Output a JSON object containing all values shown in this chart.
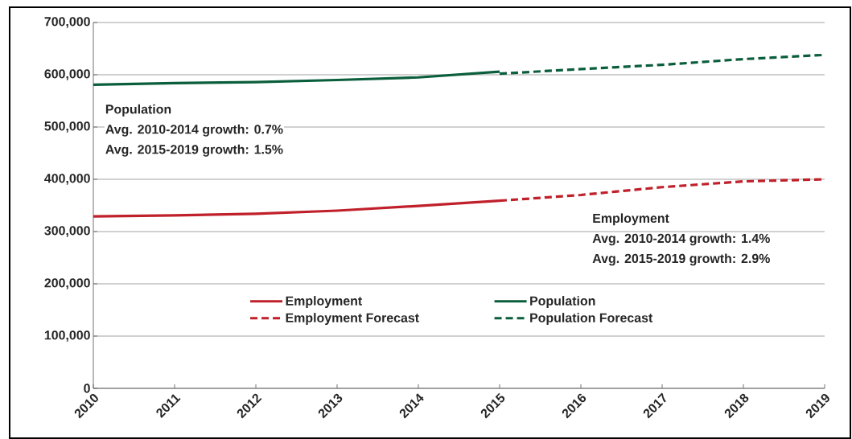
{
  "chart_data": {
    "type": "line",
    "series": [
      {
        "name": "Employment",
        "color": "#c0202a",
        "line_style": "solid",
        "x": [
          2010,
          2011,
          2012,
          2013,
          2014,
          2015
        ],
        "values": [
          329000,
          331000,
          334000,
          340000,
          349000,
          359000
        ]
      },
      {
        "name": "Population",
        "color": "#0b5e3c",
        "line_style": "solid",
        "x": [
          2010,
          2011,
          2012,
          2013,
          2014,
          2015
        ],
        "values": [
          581000,
          584000,
          586000,
          590000,
          595000,
          606000
        ]
      },
      {
        "name": "Employment Forecast",
        "color": "#c0202a",
        "line_style": "dashed",
        "x": [
          2015,
          2016,
          2017,
          2018,
          2019
        ],
        "values": [
          359000,
          370000,
          385000,
          396000,
          400000
        ]
      },
      {
        "name": "Population Forecast",
        "color": "#0b5e3c",
        "line_style": "dashed",
        "x": [
          2015,
          2016,
          2017,
          2018,
          2019
        ],
        "values": [
          602000,
          611000,
          619000,
          630000,
          638000
        ]
      }
    ],
    "xlim": [
      2010,
      2019
    ],
    "xticks": [
      2010,
      2011,
      2012,
      2013,
      2014,
      2015,
      2016,
      2017,
      2018,
      2019
    ],
    "ylim": [
      0,
      700000
    ],
    "yticks": [
      0,
      {
        "value": 100000,
        "label": "100,000"
      },
      {
        "value": 200000,
        "label": "200,000"
      },
      {
        "value": 300000,
        "label": "300,000"
      },
      {
        "value": 400000,
        "label": "400,000"
      },
      {
        "value": 500000,
        "label": "500,000"
      },
      {
        "value": 600000,
        "label": "600,000"
      },
      {
        "value": 700000,
        "label": "700,000"
      }
    ],
    "grid": "y",
    "legend": "bottom",
    "marker": "none",
    "annotations": [
      "Population",
      "Avg. 2010-2014 growth: 0.7%",
      "Avg. 2015-2019 growth: 1.5%",
      "Employment",
      "Avg. 2010-2014 growth: 1.4%",
      "Avg. 2015-2019 growth: 2.9%"
    ]
  }
}
